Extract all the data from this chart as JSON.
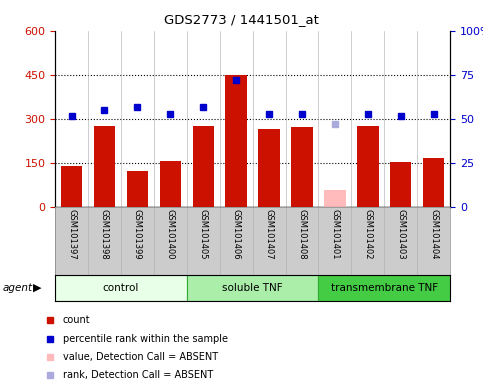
{
  "title": "GDS2773 / 1441501_at",
  "samples": [
    "GSM101397",
    "GSM101398",
    "GSM101399",
    "GSM101400",
    "GSM101405",
    "GSM101406",
    "GSM101407",
    "GSM101408",
    "GSM101401",
    "GSM101402",
    "GSM101403",
    "GSM101404"
  ],
  "count_values": [
    140,
    278,
    122,
    158,
    278,
    450,
    265,
    272,
    0,
    278,
    155,
    168
  ],
  "count_absent": [
    0,
    0,
    0,
    0,
    0,
    0,
    0,
    0,
    58,
    0,
    0,
    0
  ],
  "percentile_values": [
    52,
    55,
    57,
    53,
    57,
    72,
    53,
    53,
    0,
    53,
    52,
    53
  ],
  "percentile_absent": [
    0,
    0,
    0,
    0,
    0,
    0,
    0,
    0,
    47,
    0,
    0,
    0
  ],
  "groups": [
    {
      "label": "control",
      "start": 0,
      "end": 4,
      "color": "#e8ffe8"
    },
    {
      "label": "soluble TNF",
      "start": 4,
      "end": 8,
      "color": "#aaeeaa"
    },
    {
      "label": "transmembrane TNF",
      "start": 8,
      "end": 12,
      "color": "#44cc44"
    }
  ],
  "left_yticks": [
    0,
    150,
    300,
    450,
    600
  ],
  "right_yticks": [
    0,
    25,
    50,
    75,
    100
  ],
  "left_ylim": [
    0,
    600
  ],
  "right_ylim": [
    0,
    100
  ],
  "bar_color": "#cc1100",
  "bar_absent_color": "#ffbbbb",
  "dot_color": "#0000cc",
  "dot_absent_color": "#aaaadd",
  "plot_bg": "#ffffff",
  "label_bg": "#cccccc",
  "grid_color": "#000000"
}
